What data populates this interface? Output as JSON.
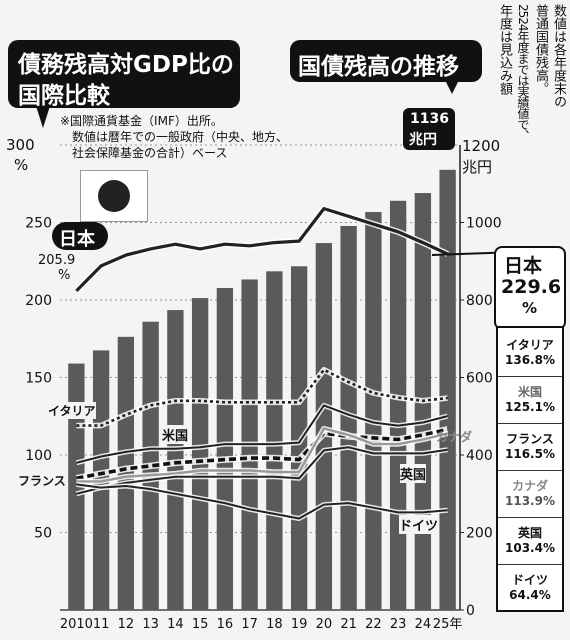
{
  "title_left": [
    "債務残高対GDP比の",
    "国際比較"
  ],
  "title_right": "国債残高の推移",
  "source_note": [
    "※国際通貨基金（IMF）出所。",
    "数値は暦年での一般政府（中央、地方、",
    "社会保障基金の合計）ベース"
  ],
  "right_note": [
    "数値は各年度末の",
    "普通国債残高。",
    "2524年度までは実績値で、",
    "年度は見込み額"
  ],
  "left_axis": {
    "top_label": "300",
    "unit": "%"
  },
  "right_axis": {
    "top_label": "1200",
    "unit": "兆円"
  },
  "annotation_1136": {
    "value": "1136",
    "unit": "兆円"
  },
  "japan_start": {
    "value": "205.9",
    "unit": "%"
  },
  "japan_flag_label": "日本",
  "inline_labels": {
    "italy": "イタリア",
    "usa": "米国",
    "france": "フランス",
    "canada": "カナダ",
    "uk": "英国",
    "germany": "ドイツ"
  },
  "right_table": {
    "japan": {
      "name": "日本",
      "value": "229.6",
      "unit": "%"
    },
    "rows": [
      {
        "name": "イタリア",
        "value": "136.8%"
      },
      {
        "name": "米国",
        "value": "125.1%"
      },
      {
        "name": "フランス",
        "value": "116.5%"
      },
      {
        "name": "カナダ",
        "value": "113.9%"
      },
      {
        "name": "英国",
        "value": "103.4%"
      },
      {
        "name": "ドイツ",
        "value": "64.4%"
      }
    ]
  },
  "colors": {
    "bar": "#5a5a5a",
    "line": "#222222",
    "canada": "#9a9a9a",
    "background": "#f4f4f4"
  },
  "chart_data": [
    {
      "type": "bar",
      "title": "国債残高の推移",
      "ylabel": "兆円",
      "ylim": [
        0,
        1200
      ],
      "yticks": [
        0,
        200,
        400,
        600,
        800,
        1000,
        1200
      ],
      "categories": [
        "2010",
        "11",
        "12",
        "13",
        "14",
        "15",
        "16",
        "17",
        "18",
        "19",
        "20",
        "21",
        "22",
        "23",
        "24",
        "25年"
      ],
      "values": [
        636,
        670,
        705,
        744,
        774,
        805,
        831,
        853,
        874,
        887,
        947,
        991,
        1027,
        1056,
        1076,
        1136
      ]
    },
    {
      "type": "line",
      "title": "債務残高対GDP比の国際比較",
      "ylabel": "%",
      "ylim": [
        0,
        300
      ],
      "yticks": [
        0,
        50,
        100,
        150,
        200,
        250,
        300
      ],
      "x": [
        "2010",
        "11",
        "12",
        "13",
        "14",
        "15",
        "16",
        "17",
        "18",
        "19",
        "20",
        "21",
        "22",
        "23",
        "24",
        "25年"
      ],
      "series": [
        {
          "name": "日本",
          "style": "solid-thick",
          "values": [
            205.9,
            222,
            229,
            233,
            236,
            233,
            236,
            235,
            237,
            238,
            259,
            254,
            249,
            244,
            237,
            229.6
          ]
        },
        {
          "name": "イタリア",
          "style": "dotted",
          "values": [
            119,
            119,
            126,
            132,
            135,
            135,
            134,
            134,
            134,
            134,
            155,
            147,
            140,
            137,
            135,
            136.8
          ]
        },
        {
          "name": "米国",
          "style": "solid",
          "values": [
            95,
            99,
            102,
            104,
            104,
            105,
            107,
            107,
            107,
            108,
            132,
            126,
            121,
            119,
            121,
            125.1
          ]
        },
        {
          "name": "フランス",
          "style": "dashed-thick",
          "values": [
            85,
            88,
            91,
            93,
            95,
            96,
            97,
            98,
            98,
            97,
            114,
            112,
            111,
            110,
            113,
            116.5
          ]
        },
        {
          "name": "カナダ",
          "style": "solid-gray",
          "values": [
            83,
            83,
            86,
            87,
            88,
            90,
            90,
            90,
            89,
            89,
            117,
            113,
            107,
            107,
            110,
            113.9
          ]
        },
        {
          "name": "英国",
          "style": "solid",
          "values": [
            75,
            79,
            82,
            84,
            86,
            86,
            86,
            86,
            86,
            85,
            103,
            105,
            101,
            101,
            101,
            103.4
          ]
        },
        {
          "name": "ドイツ",
          "style": "solid",
          "values": [
            81,
            79,
            80,
            78,
            75,
            72,
            69,
            65,
            62,
            59,
            68,
            69,
            66,
            63,
            63,
            64.4
          ]
        }
      ]
    }
  ]
}
